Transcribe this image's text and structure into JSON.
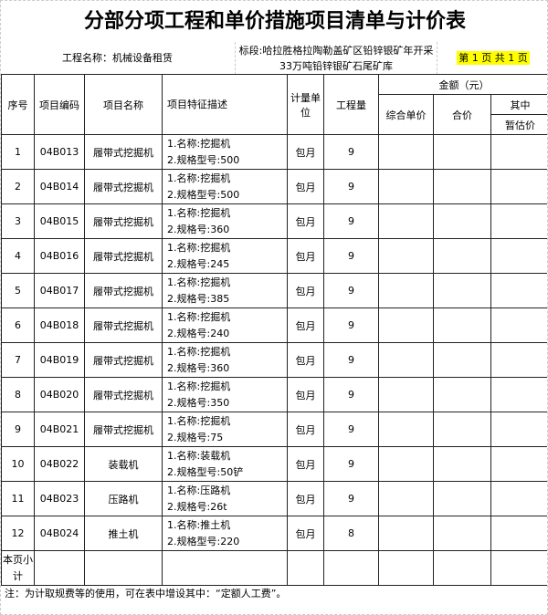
{
  "title": "分部分项工程和单价措施项目清单与计价表",
  "project_name": "工程名称：机械设备租赁",
  "section": "标段:哈拉胜格拉陶勒盖矿区铅锌银矿年开采33万吨铅锌银矿石尾矿库",
  "page_info": "第 1 页  共 1 页",
  "headers": {
    "seq": "序号",
    "code": "项目编码",
    "name": "项目名称",
    "desc": "项目特征描述",
    "unit": "计量单位",
    "qty": "工程量",
    "amount": "金额（元）",
    "unit_price": "综合单价",
    "total": "合价",
    "of_which": "其中",
    "provisional": "暂估价"
  },
  "rows": [
    {
      "seq": "1",
      "code": "04B013",
      "name": "履带式挖掘机",
      "d1": "1.名称:挖掘机",
      "d2": "2.规格型号:500",
      "unit": "包月",
      "qty": "9"
    },
    {
      "seq": "2",
      "code": "04B014",
      "name": "履带式挖掘机",
      "d1": "1.名称:挖掘机",
      "d2": "2.规格型号:500",
      "unit": "包月",
      "qty": "9"
    },
    {
      "seq": "3",
      "code": "04B015",
      "name": "履带式挖掘机",
      "d1": "1.名称:挖掘机",
      "d2": "2.规格号:360",
      "unit": "包月",
      "qty": "9"
    },
    {
      "seq": "4",
      "code": "04B016",
      "name": "履带式挖掘机",
      "d1": "1.名称:挖掘机",
      "d2": "2.规格号:245",
      "unit": "包月",
      "qty": "9"
    },
    {
      "seq": "5",
      "code": "04B017",
      "name": "履带式挖掘机",
      "d1": "1.名称:挖掘机",
      "d2": "2.规格号:385",
      "unit": "包月",
      "qty": "9"
    },
    {
      "seq": "6",
      "code": "04B018",
      "name": "履带式挖掘机",
      "d1": "1.名称:挖掘机",
      "d2": "2.规格号:240",
      "unit": "包月",
      "qty": "9"
    },
    {
      "seq": "7",
      "code": "04B019",
      "name": "履带式挖掘机",
      "d1": "1.名称:挖掘机",
      "d2": "2.规格号:360",
      "unit": "包月",
      "qty": "9"
    },
    {
      "seq": "8",
      "code": "04B020",
      "name": "履带式挖掘机",
      "d1": "1.名称:挖掘机",
      "d2": "2.规格号:350",
      "unit": "包月",
      "qty": "9"
    },
    {
      "seq": "9",
      "code": "04B021",
      "name": "履带式挖掘机",
      "d1": "1.名称:挖掘机",
      "d2": "2.规格号:75",
      "unit": "包月",
      "qty": "9"
    },
    {
      "seq": "10",
      "code": "04B022",
      "name": "装载机",
      "d1": "1.名称:装载机",
      "d2": "2.规格型号:50铲",
      "unit": "包月",
      "qty": "9"
    },
    {
      "seq": "11",
      "code": "04B023",
      "name": "压路机",
      "d1": "1.名称:压路机",
      "d2": "2.规格号:26t",
      "unit": "包月",
      "qty": "9"
    },
    {
      "seq": "12",
      "code": "04B024",
      "name": "推土机",
      "d1": "1.名称:推土机",
      "d2": "2.规格型号:220",
      "unit": "包月",
      "qty": "8"
    }
  ],
  "subtotal": "本页小计",
  "note": "注：为计取规费等的使用，可在表中增设其中：“定额人工费”。",
  "colors": {
    "highlight": "#ffff00",
    "border": "#222222"
  }
}
